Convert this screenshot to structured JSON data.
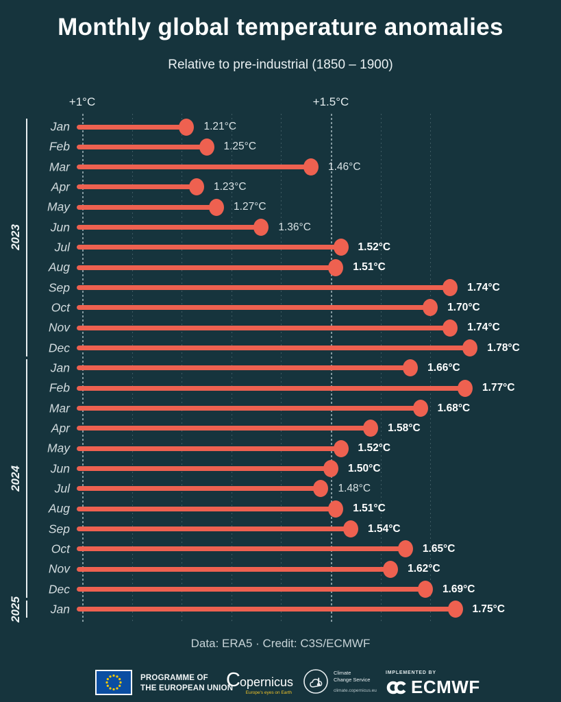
{
  "colors": {
    "background": "#16343d",
    "accent": "#ee6150",
    "grid": "#b9cfd4"
  },
  "chart_data": {
    "type": "bar",
    "variant": "horizontal-lollipop",
    "title": "Monthly global temperature anomalies",
    "subtitle": "Relative to pre-industrial (1850 – 1900)",
    "unit": "°C",
    "x_axis": {
      "tick_labels": [
        "+1°C",
        "+1.5°C"
      ],
      "tick_values": [
        1.0,
        1.5
      ],
      "range": [
        1.0,
        1.8
      ]
    },
    "gridlines": [
      1.0,
      1.1,
      1.2,
      1.3,
      1.4,
      1.5,
      1.6,
      1.7
    ],
    "major_gridlines": [
      1.0,
      1.5
    ],
    "bold_threshold": 1.5,
    "groups": [
      {
        "year": "2023",
        "points": [
          {
            "month": "Jan",
            "value": 1.21,
            "label": "1.21°C"
          },
          {
            "month": "Feb",
            "value": 1.25,
            "label": "1.25°C"
          },
          {
            "month": "Mar",
            "value": 1.46,
            "label": "1.46°C"
          },
          {
            "month": "Apr",
            "value": 1.23,
            "label": "1.23°C"
          },
          {
            "month": "May",
            "value": 1.27,
            "label": "1.27°C"
          },
          {
            "month": "Jun",
            "value": 1.36,
            "label": "1.36°C"
          },
          {
            "month": "Jul",
            "value": 1.52,
            "label": "1.52°C"
          },
          {
            "month": "Aug",
            "value": 1.51,
            "label": "1.51°C"
          },
          {
            "month": "Sep",
            "value": 1.74,
            "label": "1.74°C"
          },
          {
            "month": "Oct",
            "value": 1.7,
            "label": "1.70°C"
          },
          {
            "month": "Nov",
            "value": 1.74,
            "label": "1.74°C"
          },
          {
            "month": "Dec",
            "value": 1.78,
            "label": "1.78°C"
          }
        ]
      },
      {
        "year": "2024",
        "points": [
          {
            "month": "Jan",
            "value": 1.66,
            "label": "1.66°C"
          },
          {
            "month": "Feb",
            "value": 1.77,
            "label": "1.77°C"
          },
          {
            "month": "Mar",
            "value": 1.68,
            "label": "1.68°C"
          },
          {
            "month": "Apr",
            "value": 1.58,
            "label": "1.58°C"
          },
          {
            "month": "May",
            "value": 1.52,
            "label": "1.52°C"
          },
          {
            "month": "Jun",
            "value": 1.5,
            "label": "1.50°C"
          },
          {
            "month": "Jul",
            "value": 1.48,
            "label": "1.48°C"
          },
          {
            "month": "Aug",
            "value": 1.51,
            "label": "1.51°C"
          },
          {
            "month": "Sep",
            "value": 1.54,
            "label": "1.54°C"
          },
          {
            "month": "Oct",
            "value": 1.65,
            "label": "1.65°C"
          },
          {
            "month": "Nov",
            "value": 1.62,
            "label": "1.62°C"
          },
          {
            "month": "Dec",
            "value": 1.69,
            "label": "1.69°C"
          }
        ]
      },
      {
        "year": "2025",
        "points": [
          {
            "month": "Jan",
            "value": 1.75,
            "label": "1.75°C"
          }
        ]
      }
    ]
  },
  "footer": {
    "credit": "Data: ERA5 · Credit: C3S/ECMWF",
    "logos": {
      "eu_programme": {
        "line1": "PROGRAMME OF",
        "line2": "THE EUROPEAN UNION"
      },
      "copernicus": {
        "initial": "C",
        "rest": "opernicus",
        "tagline": "Europe's eyes on Earth"
      },
      "climate_service": {
        "line1": "Climate",
        "line2": "Change Service",
        "url": "climate.copernicus.eu"
      },
      "ecmwf": {
        "pre": "IMPLEMENTED BY",
        "name": "ECMWF"
      }
    }
  }
}
